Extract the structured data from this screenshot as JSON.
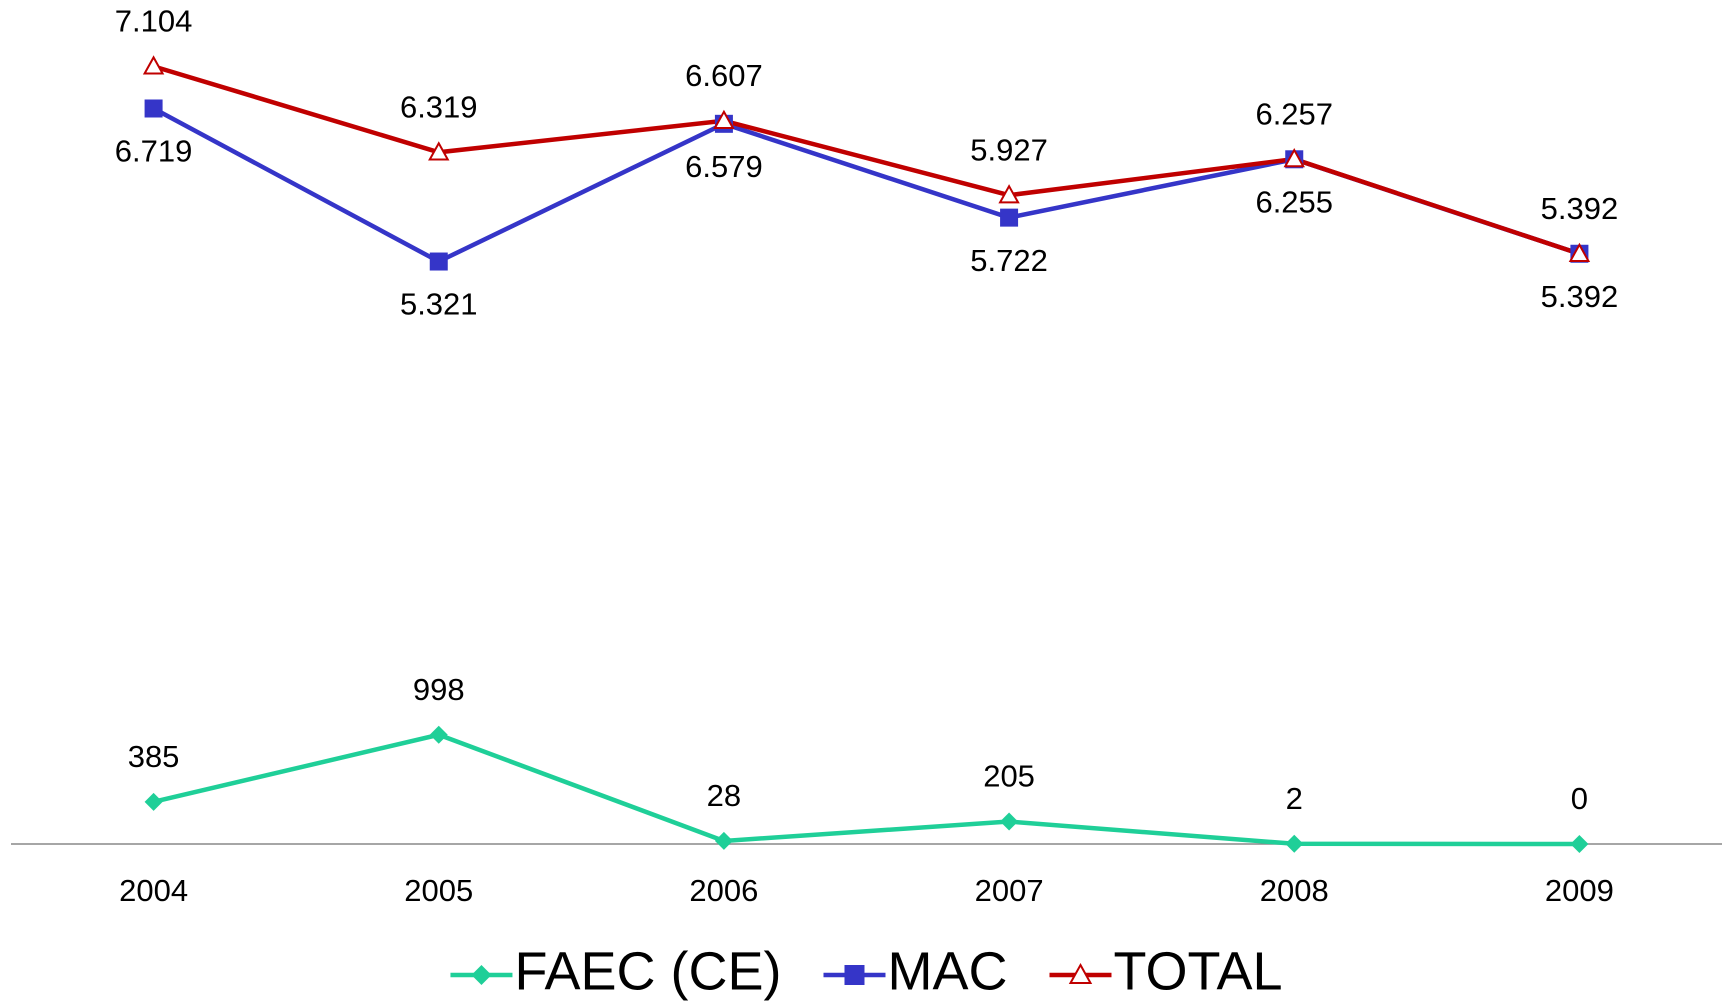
{
  "chart_data": {
    "type": "line",
    "categories": [
      "2004",
      "2005",
      "2006",
      "2007",
      "2008",
      "2009"
    ],
    "series": [
      {
        "name": "FAEC (CE)",
        "color": "#1fcf98",
        "marker": "diamond",
        "label_position": "above",
        "values": [
          385,
          998,
          28,
          205,
          2,
          0
        ]
      },
      {
        "name": "MAC",
        "color": "#3535c8",
        "marker": "square",
        "label_position": "below",
        "values": [
          6719,
          5321,
          6579,
          5722,
          6255,
          5392
        ],
        "value_labels": [
          "6.719",
          "5.321",
          "6.579",
          "5.722",
          "6.255",
          "5.392"
        ]
      },
      {
        "name": "TOTAL",
        "color": "#c00000",
        "marker": "triangle",
        "label_position": "above",
        "values": [
          7104,
          6319,
          6607,
          5927,
          6257,
          5392
        ],
        "value_labels": [
          "7.104",
          "6.319",
          "6.607",
          "5.927",
          "6.257",
          "5.392"
        ]
      }
    ],
    "ylim": [
      0,
      7500
    ],
    "legend": "bottom"
  }
}
